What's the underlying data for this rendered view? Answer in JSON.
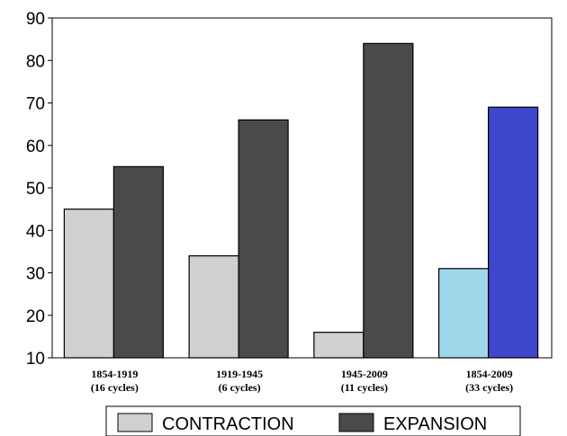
{
  "chart_data": {
    "type": "bar",
    "title": "",
    "xlabel": "",
    "ylabel": "",
    "ylim": [
      10,
      90
    ],
    "yticks": [
      10,
      20,
      30,
      40,
      50,
      60,
      70,
      80,
      90
    ],
    "grid": false,
    "legend_position": "bottom",
    "categories": [
      {
        "line1": "1854-1919",
        "line2": "(16 cycles)"
      },
      {
        "line1": "1919-1945",
        "line2": "(6 cycles)"
      },
      {
        "line1": "1945-2009",
        "line2": "(11 cycles)"
      },
      {
        "line1": "1854-2009",
        "line2": "(33 cycles)"
      }
    ],
    "series": [
      {
        "name": "CONTRACTION",
        "values": [
          45,
          34,
          16,
          31
        ],
        "colors": [
          "#d0d0d0",
          "#d0d0d0",
          "#d0d0d0",
          "#9fd8ea"
        ]
      },
      {
        "name": "EXPANSION",
        "values": [
          55,
          66,
          84,
          69
        ],
        "colors": [
          "#4a4a4a",
          "#4a4a4a",
          "#4a4a4a",
          "#3f47cc"
        ]
      }
    ],
    "legend": [
      {
        "label": "CONTRACTION",
        "color": "#d0d0d0"
      },
      {
        "label": "EXPANSION",
        "color": "#4a4a4a"
      }
    ]
  }
}
